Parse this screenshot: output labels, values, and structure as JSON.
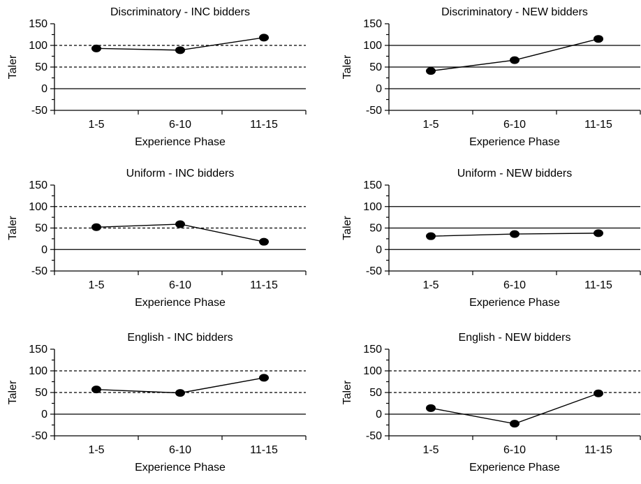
{
  "chart_data": [
    {
      "type": "line",
      "title": "Discriminatory - INC bidders",
      "xlabel": "Experience Phase",
      "ylabel": "Taler",
      "categories": [
        "1-5",
        "6-10",
        "11-15"
      ],
      "values": [
        93,
        89,
        118
      ],
      "ylim": [
        -50,
        150
      ],
      "yticks": [
        "150",
        "100",
        "50",
        "0",
        "-50"
      ],
      "gridlines": [
        {
          "y": 100,
          "style": "dashed"
        },
        {
          "y": 50,
          "style": "dashed"
        },
        {
          "y": 0,
          "style": "solid"
        }
      ]
    },
    {
      "type": "line",
      "title": "Discriminatory - NEW bidders",
      "xlabel": "Experience Phase",
      "ylabel": "Taler",
      "categories": [
        "1-5",
        "6-10",
        "11-15"
      ],
      "values": [
        41,
        66,
        115
      ],
      "ylim": [
        -50,
        150
      ],
      "yticks": [
        "150",
        "100",
        "50",
        "0",
        "-50"
      ],
      "gridlines": [
        {
          "y": 100,
          "style": "solid"
        },
        {
          "y": 50,
          "style": "solid"
        },
        {
          "y": 0,
          "style": "solid"
        }
      ]
    },
    {
      "type": "line",
      "title": "Uniform - INC bidders",
      "xlabel": "Experience Phase",
      "ylabel": "Taler",
      "categories": [
        "1-5",
        "6-10",
        "11-15"
      ],
      "values": [
        52,
        59,
        18
      ],
      "ylim": [
        -50,
        150
      ],
      "yticks": [
        "150",
        "100",
        "50",
        "0",
        "-50"
      ],
      "gridlines": [
        {
          "y": 100,
          "style": "dashed"
        },
        {
          "y": 50,
          "style": "dashed"
        },
        {
          "y": 0,
          "style": "solid"
        }
      ]
    },
    {
      "type": "line",
      "title": "Uniform - NEW bidders",
      "xlabel": "Experience Phase",
      "ylabel": "Taler",
      "categories": [
        "1-5",
        "6-10",
        "11-15"
      ],
      "values": [
        31,
        36,
        38
      ],
      "ylim": [
        -50,
        150
      ],
      "yticks": [
        "150",
        "100",
        "50",
        "0",
        "-50"
      ],
      "gridlines": [
        {
          "y": 100,
          "style": "solid"
        },
        {
          "y": 50,
          "style": "solid"
        },
        {
          "y": 0,
          "style": "solid"
        }
      ]
    },
    {
      "type": "line",
      "title": "English - INC bidders",
      "xlabel": "Experience Phase",
      "ylabel": "Taler",
      "categories": [
        "1-5",
        "6-10",
        "11-15"
      ],
      "values": [
        57,
        49,
        84
      ],
      "ylim": [
        -50,
        150
      ],
      "yticks": [
        "150",
        "100",
        "50",
        "0",
        "-50"
      ],
      "gridlines": [
        {
          "y": 100,
          "style": "dashed"
        },
        {
          "y": 50,
          "style": "dashed"
        },
        {
          "y": 0,
          "style": "solid"
        }
      ]
    },
    {
      "type": "line",
      "title": "English - NEW bidders",
      "xlabel": "Experience Phase",
      "ylabel": "Taler",
      "categories": [
        "1-5",
        "6-10",
        "11-15"
      ],
      "values": [
        14,
        -22,
        48
      ],
      "ylim": [
        -50,
        150
      ],
      "yticks": [
        "150",
        "100",
        "50",
        "0",
        "-50"
      ],
      "gridlines": [
        {
          "y": 100,
          "style": "dashed"
        },
        {
          "y": 50,
          "style": "dashed"
        },
        {
          "y": 0,
          "style": "solid"
        }
      ]
    }
  ]
}
